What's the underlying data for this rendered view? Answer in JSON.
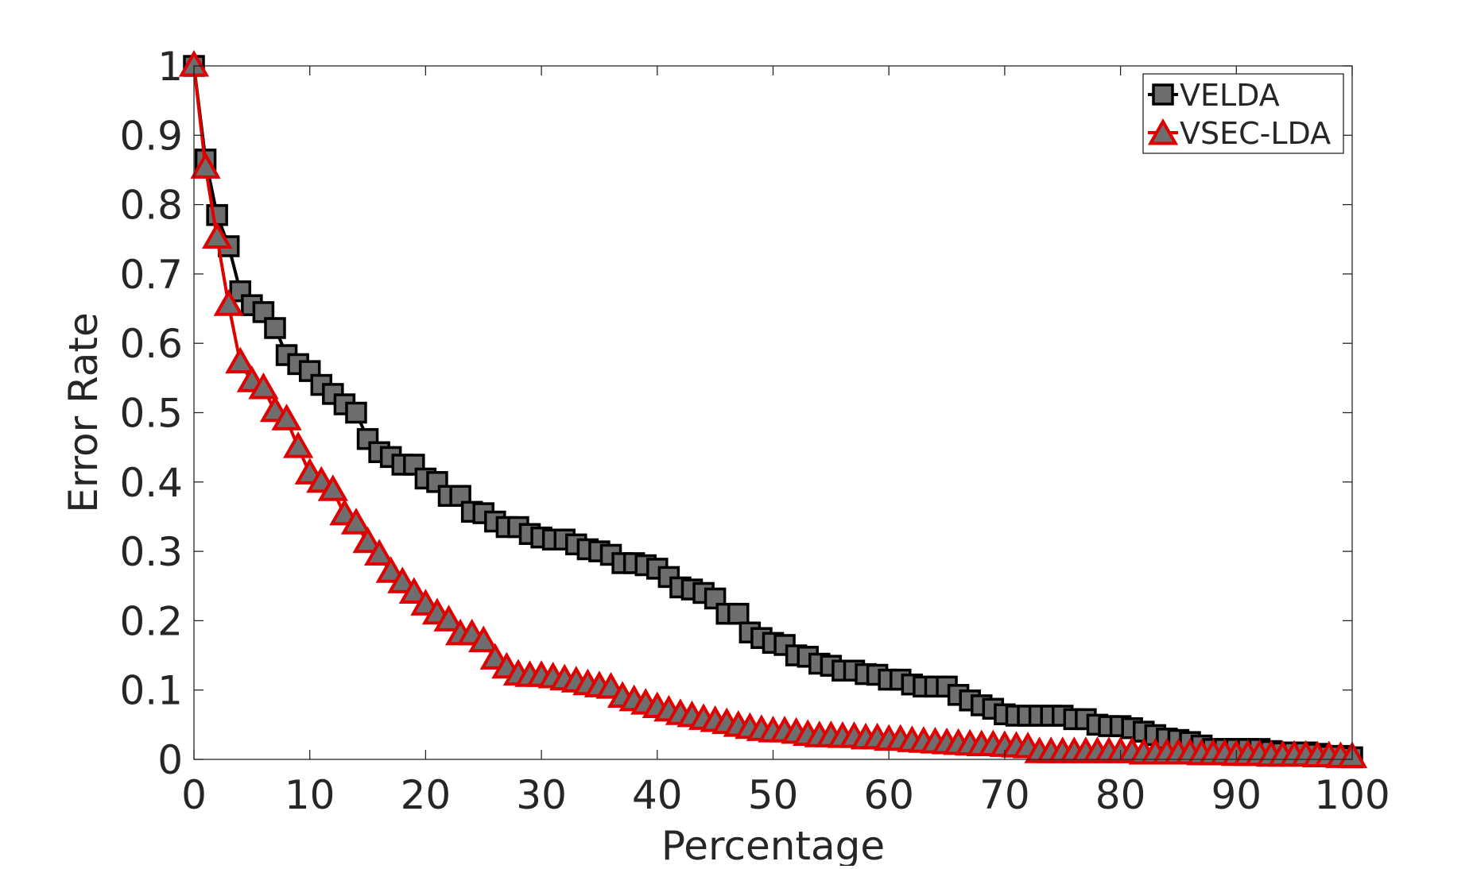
{
  "chart_data": {
    "type": "line",
    "title": "",
    "xlabel": "Percentage",
    "ylabel": "Error Rate",
    "xlim": [
      0,
      100
    ],
    "ylim": [
      0,
      1
    ],
    "x_ticks": [
      0,
      10,
      20,
      30,
      40,
      50,
      60,
      70,
      80,
      90,
      100
    ],
    "x_tick_labels": [
      "0",
      "10",
      "20",
      "30",
      "40",
      "50",
      "60",
      "70",
      "80",
      "90",
      "100"
    ],
    "y_ticks": [
      0,
      0.1,
      0.2,
      0.3,
      0.4,
      0.5,
      0.6,
      0.7,
      0.8,
      0.9,
      1
    ],
    "y_tick_labels": [
      "0",
      "0.1",
      "0.2",
      "0.3",
      "0.4",
      "0.5",
      "0.6",
      "0.7",
      "0.8",
      "0.9",
      "1"
    ],
    "grid": false,
    "legend_position": "top-right",
    "x": [
      0,
      1,
      2,
      3,
      4,
      5,
      6,
      7,
      8,
      9,
      10,
      11,
      12,
      13,
      14,
      15,
      16,
      17,
      18,
      19,
      20,
      21,
      22,
      23,
      24,
      25,
      26,
      27,
      28,
      29,
      30,
      31,
      32,
      33,
      34,
      35,
      36,
      37,
      38,
      39,
      40,
      41,
      42,
      43,
      44,
      45,
      46,
      47,
      48,
      49,
      50,
      51,
      52,
      53,
      54,
      55,
      56,
      57,
      58,
      59,
      60,
      61,
      62,
      63,
      64,
      65,
      66,
      67,
      68,
      69,
      70,
      71,
      72,
      73,
      74,
      75,
      76,
      77,
      78,
      79,
      80,
      81,
      82,
      83,
      84,
      85,
      86,
      87,
      88,
      89,
      90,
      91,
      92,
      93,
      94,
      95,
      96,
      97,
      98,
      99,
      100
    ],
    "series": [
      {
        "name": "VELDA",
        "line_color": "#000000",
        "marker": "square",
        "marker_fill": "#6e6e6e",
        "marker_edge": "#000000",
        "values": [
          1.0,
          0.865,
          0.785,
          0.74,
          0.675,
          0.655,
          0.645,
          0.622,
          0.583,
          0.57,
          0.56,
          0.54,
          0.527,
          0.512,
          0.5,
          0.462,
          0.443,
          0.436,
          0.425,
          0.425,
          0.405,
          0.4,
          0.38,
          0.38,
          0.357,
          0.355,
          0.343,
          0.335,
          0.335,
          0.325,
          0.32,
          0.317,
          0.317,
          0.31,
          0.303,
          0.3,
          0.295,
          0.283,
          0.283,
          0.28,
          0.275,
          0.263,
          0.248,
          0.245,
          0.24,
          0.232,
          0.21,
          0.21,
          0.183,
          0.175,
          0.168,
          0.165,
          0.15,
          0.148,
          0.138,
          0.135,
          0.128,
          0.128,
          0.123,
          0.122,
          0.115,
          0.115,
          0.108,
          0.105,
          0.105,
          0.105,
          0.093,
          0.085,
          0.078,
          0.073,
          0.065,
          0.063,
          0.063,
          0.063,
          0.063,
          0.063,
          0.058,
          0.058,
          0.05,
          0.048,
          0.048,
          0.045,
          0.04,
          0.035,
          0.03,
          0.028,
          0.025,
          0.02,
          0.015,
          0.015,
          0.015,
          0.015,
          0.015,
          0.012,
          0.01,
          0.01,
          0.01,
          0.008,
          0.005,
          0.005,
          0.003
        ]
      },
      {
        "name": "VSEC-LDA",
        "line_color": "#e00000",
        "marker": "triangle",
        "marker_fill": "#6e6e6e",
        "marker_edge": "#e00000",
        "values": [
          1.0,
          0.853,
          0.752,
          0.655,
          0.572,
          0.545,
          0.535,
          0.502,
          0.49,
          0.45,
          0.412,
          0.4,
          0.388,
          0.353,
          0.34,
          0.313,
          0.295,
          0.27,
          0.255,
          0.24,
          0.223,
          0.21,
          0.2,
          0.18,
          0.18,
          0.17,
          0.145,
          0.132,
          0.122,
          0.12,
          0.12,
          0.118,
          0.115,
          0.112,
          0.108,
          0.105,
          0.103,
          0.09,
          0.085,
          0.08,
          0.075,
          0.07,
          0.065,
          0.062,
          0.058,
          0.055,
          0.052,
          0.048,
          0.045,
          0.042,
          0.04,
          0.04,
          0.038,
          0.035,
          0.033,
          0.033,
          0.032,
          0.032,
          0.03,
          0.03,
          0.028,
          0.028,
          0.026,
          0.025,
          0.024,
          0.023,
          0.022,
          0.021,
          0.02,
          0.02,
          0.019,
          0.018,
          0.017,
          0.01,
          0.01,
          0.01,
          0.01,
          0.01,
          0.01,
          0.01,
          0.01,
          0.01,
          0.008,
          0.008,
          0.008,
          0.008,
          0.008,
          0.007,
          0.007,
          0.007,
          0.006,
          0.006,
          0.006,
          0.005,
          0.005,
          0.005,
          0.005,
          0.004,
          0.004,
          0.003,
          0.003
        ]
      }
    ]
  }
}
